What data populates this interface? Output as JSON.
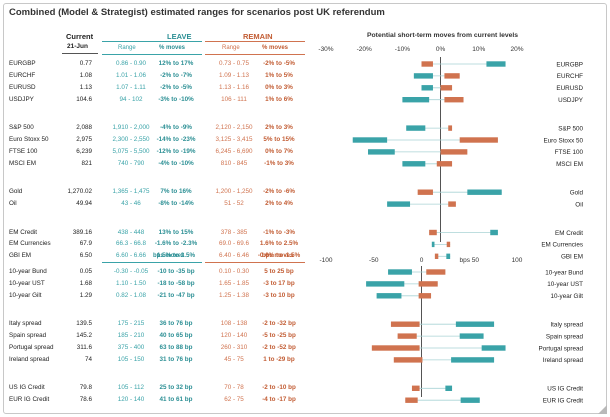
{
  "title": "Combined (Model & Strategist) estimated ranges for scenarios post UK referendum",
  "headers": {
    "current": "Current",
    "date": "21-Jun",
    "leave": "LEAVE",
    "remain": "REMAIN",
    "range": "Range",
    "moves": "% moves",
    "bps_moves": "bps moves",
    "chart_title": "Potential short-term moves from current levels"
  },
  "colors": {
    "leave": "#3aa3a8",
    "remain": "#d0734f"
  },
  "top_rows": [
    {
      "label": "EURGBP",
      "current": "0.77",
      "leave_range": "0.86 - 0.90",
      "leave_moves": "12% to 17%",
      "remain_range": "0.73 - 0.75",
      "remain_moves": "-2% to -5%",
      "group": 0
    },
    {
      "label": "EURCHF",
      "current": "1.08",
      "leave_range": "1.01 - 1.06",
      "leave_moves": "-2% to -7%",
      "remain_range": "1.09 - 1.13",
      "remain_moves": "1% to 5%",
      "group": 0
    },
    {
      "label": "EURUSD",
      "current": "1.13",
      "leave_range": "1.07 - 1.11",
      "leave_moves": "-2% to -5%",
      "remain_range": "1.13 - 1.16",
      "remain_moves": "0% to 3%",
      "group": 0
    },
    {
      "label": "USDJPY",
      "current": "104.6",
      "leave_range": "94 - 102",
      "leave_moves": "-3% to -10%",
      "remain_range": "106 - 111",
      "remain_moves": "1% to 6%",
      "group": 0
    },
    {
      "label": "S&P 500",
      "current": "2,088",
      "leave_range": "1,910 - 2,000",
      "leave_moves": "-4% to -9%",
      "remain_range": "2,120 - 2,150",
      "remain_moves": "2% to 3%",
      "group": 1
    },
    {
      "label": "Euro Stoxx 50",
      "current": "2,975",
      "leave_range": "2,300 - 2,550",
      "leave_moves": "-14% to -23%",
      "remain_range": "3,125 - 3,415",
      "remain_moves": "5% to 15%",
      "group": 1
    },
    {
      "label": "FTSE 100",
      "current": "6,239",
      "leave_range": "5,075 - 5,500",
      "leave_moves": "-12% to -19%",
      "remain_range": "6,245 - 6,690",
      "remain_moves": "0% to 7%",
      "group": 1
    },
    {
      "label": "MSCI EM",
      "current": "821",
      "leave_range": "740 - 790",
      "leave_moves": "-4% to -10%",
      "remain_range": "810 - 845",
      "remain_moves": "-1% to 3%",
      "group": 1
    },
    {
      "label": "Gold",
      "current": "1,270.02",
      "leave_range": "1,365 - 1,475",
      "leave_moves": "7% to 16%",
      "remain_range": "1,200 - 1,250",
      "remain_moves": "-2% to -6%",
      "group": 2
    },
    {
      "label": "Oil",
      "current": "49.94",
      "leave_range": "43 - 46",
      "leave_moves": "-8% to -14%",
      "remain_range": "51 - 52",
      "remain_moves": "2% to 4%",
      "group": 2
    },
    {
      "label": "EM Credit",
      "current": "389.16",
      "leave_range": "438 - 448",
      "leave_moves": "13% to 15%",
      "remain_range": "378 - 385",
      "remain_moves": "-1% to -3%",
      "group": 3
    },
    {
      "label": "EM Currencies",
      "current": "67.9",
      "leave_range": "66.3 - 66.8",
      "leave_moves": "-1.6% to -2.3%",
      "remain_range": "69.0 - 69.6",
      "remain_moves": "1.6% to 2.5%",
      "group": 3
    },
    {
      "label": "GBI EM",
      "current": "6.50",
      "leave_range": "6.60 - 6.66",
      "leave_moves": "1.5% to 2.5%",
      "remain_range": "6.40 - 6.46",
      "remain_moves": "-0.6% to -1.5%",
      "group": 3
    }
  ],
  "bottom_rows": [
    {
      "label": "10-year Bund",
      "current": "0.05",
      "leave_range": "-0.30 - -0.05",
      "leave_moves": "-10 to -35 bp",
      "remain_range": "0.10 - 0.30",
      "remain_moves": "5 to 25 bp",
      "group": 0
    },
    {
      "label": "10-year UST",
      "current": "1.68",
      "leave_range": "1.10 - 1.50",
      "leave_moves": "-18 to -58 bp",
      "remain_range": "1.65 - 1.85",
      "remain_moves": "-3 to 17 bp",
      "group": 0
    },
    {
      "label": "10-year Gilt",
      "current": "1.29",
      "leave_range": "0.82 - 1.08",
      "leave_moves": "-21 to -47 bp",
      "remain_range": "1.25 - 1.38",
      "remain_moves": "-3 to 10 bp",
      "group": 0
    },
    {
      "label": "Italy spread",
      "current": "139.5",
      "leave_range": "175 - 215",
      "leave_moves": "36 to 76 bp",
      "remain_range": "108 - 138",
      "remain_moves": "-2 to -32 bp",
      "group": 1
    },
    {
      "label": "Spain spread",
      "current": "145.2",
      "leave_range": "185 - 210",
      "leave_moves": "40 to 65 bp",
      "remain_range": "120 - 140",
      "remain_moves": "-5 to -25 bp",
      "group": 1
    },
    {
      "label": "Portugal spread",
      "current": "311.6",
      "leave_range": "375 - 400",
      "leave_moves": "63 to 88 bp",
      "remain_range": "260 - 310",
      "remain_moves": "-2 to -52 bp",
      "group": 1
    },
    {
      "label": "Ireland spread",
      "current": "74",
      "leave_range": "105 - 150",
      "leave_moves": "31 to 76 bp",
      "remain_range": "45 - 75",
      "remain_moves": "1 to -29 bp",
      "group": 1
    },
    {
      "label": "US IG Credit",
      "current": "79.8",
      "leave_range": "105 - 112",
      "leave_moves": "25 to 32 bp",
      "remain_range": "70 - 78",
      "remain_moves": "-2 to -10 bp",
      "group": 2
    },
    {
      "label": "EUR IG Credit",
      "current": "78.6",
      "leave_range": "120 - 140",
      "leave_moves": "41 to 61 bp",
      "remain_range": "62 - 75",
      "remain_moves": "-4 to -17 bp",
      "group": 2
    }
  ],
  "chart_data": [
    {
      "type": "bar",
      "title": "Potential short-term moves from current levels",
      "unit": "%",
      "xlim": [
        -30,
        20
      ],
      "ticks": [
        -30,
        -20,
        -10,
        0,
        10,
        20
      ],
      "tick_labels": [
        "-30%",
        "-20%",
        "-10%",
        "0%",
        "10%",
        "20%"
      ],
      "categories": [
        "EURGBP",
        "EURCHF",
        "EURUSD",
        "USDJPY",
        "S&P 500",
        "Euro Stoxx 50",
        "FTSE 100",
        "MSCI EM",
        "Gold",
        "Oil",
        "EM Credit",
        "EM Currencies",
        "GBI EM"
      ],
      "series": [
        {
          "name": "Leave",
          "color": "#3aa3a8",
          "ranges": [
            [
              12,
              17
            ],
            [
              -7,
              -2
            ],
            [
              -5,
              -2
            ],
            [
              -10,
              -3
            ],
            [
              -9,
              -4
            ],
            [
              -23,
              -14
            ],
            [
              -19,
              -12
            ],
            [
              -10,
              -4
            ],
            [
              7,
              16
            ],
            [
              -14,
              -8
            ],
            [
              13,
              15
            ],
            [
              -2.3,
              -1.6
            ],
            [
              1.5,
              2.5
            ]
          ]
        },
        {
          "name": "Remain",
          "color": "#d0734f",
          "ranges": [
            [
              -5,
              -2
            ],
            [
              1,
              5
            ],
            [
              0,
              3
            ],
            [
              1,
              6
            ],
            [
              2,
              3
            ],
            [
              5,
              15
            ],
            [
              0,
              7
            ],
            [
              -1,
              3
            ],
            [
              -6,
              -2
            ],
            [
              2,
              4
            ],
            [
              -3,
              -1
            ],
            [
              1.6,
              2.5
            ],
            [
              -1.5,
              -0.6
            ]
          ]
        }
      ]
    },
    {
      "type": "bar",
      "title": "Potential short-term moves from current levels",
      "unit": "bps",
      "xlim": [
        -100,
        100
      ],
      "ticks": [
        -100,
        -50,
        0,
        50,
        100
      ],
      "tick_labels": [
        "-100",
        "-50",
        "0",
        "bps 50",
        "100"
      ],
      "categories": [
        "10-year Bund",
        "10-year UST",
        "10-year Gilt",
        "Italy spread",
        "Spain spread",
        "Portugal spread",
        "Ireland spread",
        "US IG Credit",
        "EUR IG Credit"
      ],
      "series": [
        {
          "name": "Leave",
          "color": "#3aa3a8",
          "ranges": [
            [
              -35,
              -10
            ],
            [
              -58,
              -18
            ],
            [
              -47,
              -21
            ],
            [
              36,
              76
            ],
            [
              40,
              65
            ],
            [
              63,
              88
            ],
            [
              31,
              76
            ],
            [
              25,
              32
            ],
            [
              41,
              61
            ]
          ]
        },
        {
          "name": "Remain",
          "color": "#d0734f",
          "ranges": [
            [
              5,
              25
            ],
            [
              -3,
              17
            ],
            [
              -3,
              10
            ],
            [
              -32,
              -2
            ],
            [
              -25,
              -5
            ],
            [
              -52,
              -2
            ],
            [
              -29,
              1
            ],
            [
              -10,
              -2
            ],
            [
              -17,
              -4
            ]
          ]
        }
      ]
    }
  ]
}
